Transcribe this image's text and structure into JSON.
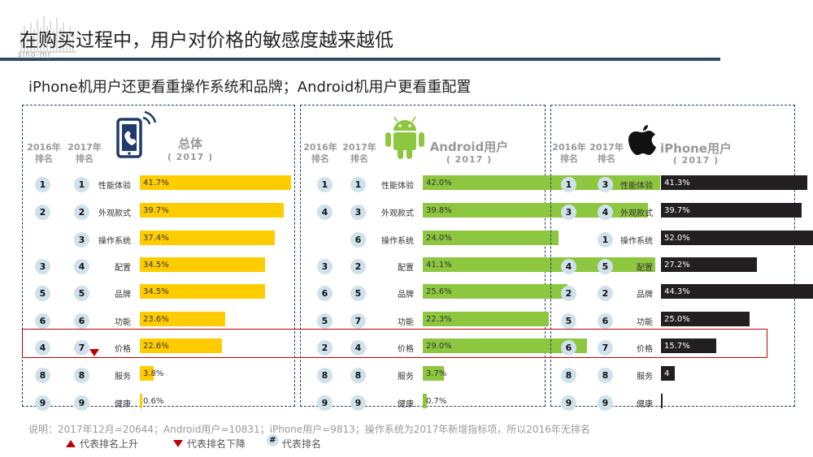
{
  "header": {
    "logo_text": "sino-mr",
    "title": "在购买过程中，用户对价格的敏感度越来越低",
    "subtitle": "iPhone机用户还更看重操作系统和品牌；Android机用户更看重配置"
  },
  "col_2016": "2016年\n排名",
  "col_2017": "2017年\n排名",
  "chart_data": [
    {
      "type": "bar",
      "name": "总体",
      "year": "( 2017 )",
      "icon": "phone-call-icon",
      "color": "#ffcc00",
      "label_color": "#333333",
      "categories": [
        "性能体验",
        "外观款式",
        "操作系统",
        "配置",
        "品牌",
        "功能",
        "价格",
        "服务",
        "健康"
      ],
      "values": [
        41.7,
        39.7,
        37.4,
        34.5,
        34.5,
        23.6,
        22.6,
        3.8,
        0.6
      ],
      "labels": [
        "41.7%",
        "39.7%",
        "37.4%",
        "34.5%",
        "34.5%",
        "23.6%",
        "22.6%",
        "3.8%",
        "0.6%"
      ],
      "rank_2016": [
        "1",
        "2",
        "",
        "3",
        "5",
        "6",
        "4",
        "8",
        "9"
      ],
      "rank_2017": [
        "1",
        "2",
        "3",
        "4",
        "5",
        "6",
        "7",
        "8",
        "9"
      ],
      "trend": [
        "",
        "",
        "",
        "",
        "",
        "",
        "down",
        "",
        ""
      ]
    },
    {
      "type": "bar",
      "name": "Android用户",
      "year": "( 2017 )",
      "icon": "android-icon",
      "color": "#8dc63f",
      "label_color": "#333333",
      "categories": [
        "性能体验",
        "外观款式",
        "操作系统",
        "配置",
        "品牌",
        "功能",
        "价格",
        "服务",
        "健康"
      ],
      "values": [
        42.0,
        39.8,
        24.0,
        41.1,
        25.6,
        22.3,
        29.0,
        3.7,
        0.7
      ],
      "labels": [
        "42.0%",
        "39.8%",
        "24.0%",
        "41.1%",
        "25.6%",
        "22.3%",
        "29.0%",
        "3.7%",
        "0.7%"
      ],
      "rank_2016": [
        "1",
        "4",
        "",
        "3",
        "6",
        "5",
        "2",
        "8",
        "9"
      ],
      "rank_2017": [
        "1",
        "3",
        "6",
        "2",
        "5",
        "7",
        "4",
        "8",
        "9"
      ],
      "trend": [
        "",
        "",
        "",
        "",
        "",
        "",
        "",
        "",
        ""
      ]
    },
    {
      "type": "bar",
      "name": "iPhone用户",
      "year": "( 2017 )",
      "icon": "apple-icon",
      "color": "#231f20",
      "label_color": "#ffffff",
      "categories": [
        "性能体验",
        "外观款式",
        "操作系统",
        "配置",
        "品牌",
        "功能",
        "价格",
        "服务",
        "健康"
      ],
      "values": [
        41.3,
        39.7,
        52.0,
        27.2,
        44.3,
        25.0,
        15.7,
        4,
        0.3
      ],
      "labels": [
        "41.3%",
        "39.7%",
        "52.0%",
        "27.2%",
        "44.3%",
        "25.0%",
        "15.7%",
        "4",
        ""
      ],
      "rank_2016": [
        "1",
        "3",
        "",
        "4",
        "2",
        "5",
        "6",
        "8",
        "9"
      ],
      "rank_2017": [
        "3",
        "4",
        "1",
        "5",
        "2",
        "6",
        "7",
        "8",
        "9"
      ],
      "trend": [
        "",
        "",
        "",
        "",
        "",
        "",
        "",
        "",
        ""
      ]
    }
  ],
  "footer": {
    "note": "说明：2017年12月=20644；Android用户=10831；iPhone用户=9813；操作系统为2017年新增指标项，所以2016年无排名",
    "legend_up": "代表排名上升",
    "legend_down": "代表排名下降",
    "legend_hash_symbol": "#",
    "legend_rank": "代表排名"
  }
}
